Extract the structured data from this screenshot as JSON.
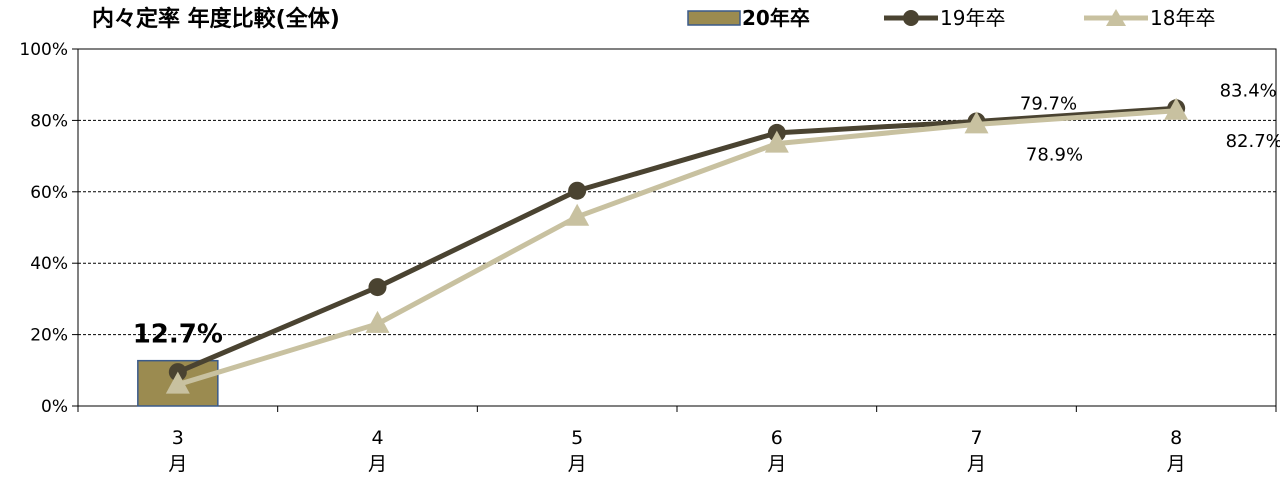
{
  "chart_data": {
    "type": "line",
    "title": "内々定率 年度比較(全体)",
    "categories": [
      "3月",
      "4月",
      "5月",
      "6月",
      "7月",
      "8月"
    ],
    "ylim": [
      0,
      100
    ],
    "yticks": [
      "0%",
      "20%",
      "40%",
      "60%",
      "80%",
      "100%"
    ],
    "grid": true,
    "legend_position": "top-right",
    "series": [
      {
        "name": "20年卒",
        "kind": "bar",
        "color": "#9b8b50",
        "border": "#3a5a8a",
        "values": [
          12.7,
          null,
          null,
          null,
          null,
          null
        ],
        "labels": [
          "12.7%",
          "",
          "",
          "",
          "",
          ""
        ]
      },
      {
        "name": "19年卒",
        "kind": "line",
        "marker": "circle",
        "color": "#4a4331",
        "values": [
          9.5,
          33.3,
          60.3,
          76.5,
          79.7,
          83.4
        ],
        "labels": [
          "",
          "",
          "",
          "",
          "79.7%",
          "83.4%"
        ]
      },
      {
        "name": "18年卒",
        "kind": "line",
        "marker": "triangle",
        "color": "#c8c1a0",
        "values": [
          6.0,
          23.0,
          53.0,
          73.5,
          78.9,
          82.7
        ],
        "labels": [
          "",
          "",
          "",
          "",
          "78.9%",
          "82.7%"
        ]
      }
    ]
  }
}
